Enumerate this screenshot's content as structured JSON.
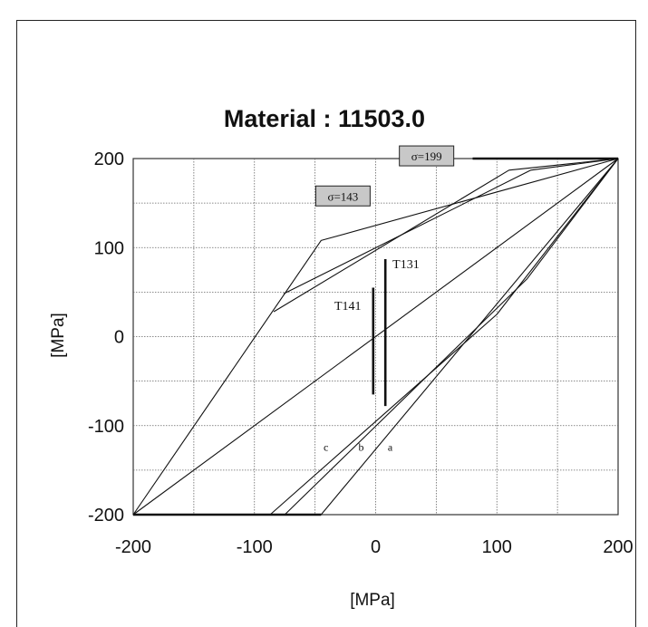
{
  "chart_data": {
    "type": "line",
    "title": "Material : 11503.0",
    "xlabel": "[MPa]",
    "ylabel": "[MPa]",
    "xlim": [
      -200,
      200
    ],
    "ylim": [
      -200,
      200
    ],
    "xticks": [
      -200,
      -100,
      0,
      100,
      200
    ],
    "yticks": [
      200,
      100,
      0,
      -100,
      -200
    ],
    "grid": true,
    "gridlines_x": [
      -200,
      -150,
      -100,
      -50,
      0,
      50,
      100,
      150,
      200
    ],
    "gridlines_y": [
      -200,
      -150,
      -100,
      -50,
      0,
      50,
      100,
      150,
      200
    ],
    "series": [
      {
        "style": "thin",
        "x": [
          -200,
          200
        ],
        "y": [
          -200,
          200
        ]
      },
      {
        "style": "thin",
        "x": [
          -200,
          -45,
          200
        ],
        "y": [
          -200,
          108,
          200
        ]
      },
      {
        "style": "thin",
        "x": [
          -200,
          -45,
          200
        ],
        "y": [
          -200,
          -200,
          200
        ]
      },
      {
        "style": "thin",
        "x": [
          -84,
          110,
          200
        ],
        "y": [
          28,
          187,
          200
        ]
      },
      {
        "style": "thin",
        "x": [
          -76,
          128,
          200
        ],
        "y": [
          48,
          187,
          200
        ]
      },
      {
        "style": "thin",
        "x": [
          -87,
          100,
          200
        ],
        "y": [
          -200,
          25,
          200
        ]
      },
      {
        "style": "thin",
        "x": [
          -75,
          125,
          200
        ],
        "y": [
          -200,
          65,
          200
        ]
      },
      {
        "style": "thick",
        "x": [
          -200,
          -45
        ],
        "y": [
          -200,
          -200
        ]
      },
      {
        "style": "thick",
        "x": [
          80,
          200
        ],
        "y": [
          200,
          200
        ]
      },
      {
        "style": "thick",
        "x": [
          -2,
          -2
        ],
        "y": [
          -65,
          55
        ]
      },
      {
        "style": "thick",
        "x": [
          8,
          8
        ],
        "y": [
          -78,
          87
        ]
      }
    ],
    "annotations": [
      {
        "text": "σ=199",
        "x": 42,
        "y": 203,
        "boxed": true
      },
      {
        "text": "σ=143",
        "x": -27,
        "y": 158,
        "boxed": true
      },
      {
        "text": "T131",
        "x": 25,
        "y": 77,
        "boxed": false
      },
      {
        "text": "T141",
        "x": -23,
        "y": 30,
        "boxed": false
      },
      {
        "text": "c",
        "x": -41,
        "y": -128,
        "boxed": false
      },
      {
        "text": "b",
        "x": -12,
        "y": -128,
        "boxed": false
      },
      {
        "text": "a",
        "x": 12,
        "y": -128,
        "boxed": false
      }
    ]
  }
}
